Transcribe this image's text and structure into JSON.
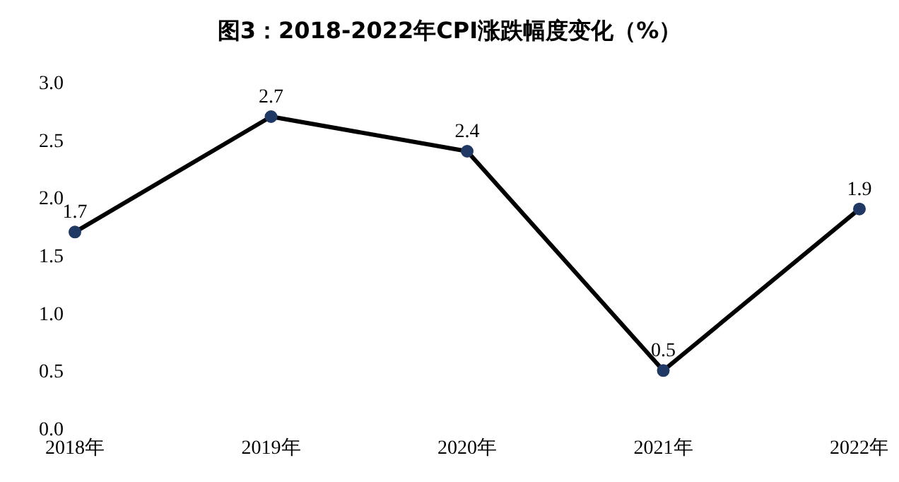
{
  "chart_data": {
    "type": "line",
    "title": "图3：2018-2022年CPI涨跌幅度变化（%）",
    "categories": [
      "2018年",
      "2019年",
      "2020年",
      "2021年",
      "2022年"
    ],
    "series": [
      {
        "color": "#000000",
        "values": [
          1.7,
          2.7,
          2.4,
          0.5,
          1.9
        ]
      }
    ],
    "ylim": [
      0,
      3
    ],
    "yticks": [
      {
        "value": 0,
        "label": "0.0"
      },
      {
        "value": 0.5,
        "label": "0.5"
      },
      {
        "value": 1,
        "label": "1.0"
      },
      {
        "value": 1.5,
        "label": "1.5"
      },
      {
        "value": 2,
        "label": "2.0"
      },
      {
        "value": 2.5,
        "label": "2.5"
      },
      {
        "value": 3,
        "label": "3.0"
      }
    ],
    "marker": "circle",
    "line_style": "solid",
    "data_labels": true,
    "grid": false,
    "legend": false
  }
}
